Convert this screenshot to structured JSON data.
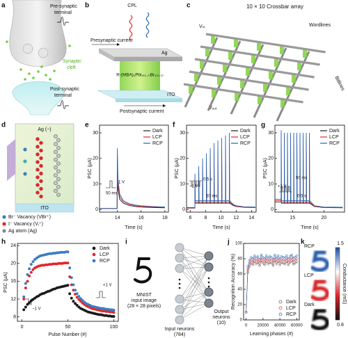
{
  "figure": {
    "a": {
      "label": "a",
      "pre": [
        "Pre-synaptic",
        "terminal"
      ],
      "cleft": [
        "Synaptic",
        "cleft"
      ],
      "post": [
        "Post-synaptic",
        "terminal"
      ]
    },
    "b": {
      "label": "b",
      "cpl": "CPL",
      "presynaptic_current": "Presynaptic current",
      "top_electrode": "Ag",
      "layer": "R-(MBA)₂PbI₄₍₀.₇₎Br₄₍₀.₃₎",
      "bottom_electrode": "ITO",
      "postsynaptic_current": "Postsynaptic current"
    },
    "c": {
      "label": "c",
      "title": "10 × 10 Crossbar array",
      "vin": "Vᵢₙ",
      "wordlines": "Wordlines",
      "bitlines": "Bitlines",
      "vout": "Vₒᵤₜ"
    },
    "d": {
      "label": "d",
      "top": "Ag (−)",
      "bottom": "ITO",
      "legend": [
        "Br⁻ Vacancy (VBr⁺)",
        "I⁻ Vacancy (Vᵢ⁺)",
        "Ag atom (Ag)"
      ]
    },
    "i": {
      "label": "i",
      "input": [
        "MNIST",
        "input image",
        "(28 × 28 pixels)"
      ],
      "input_neurons": [
        "Input neurons",
        "(784)"
      ],
      "output_neurons": [
        "Output",
        "neurons",
        "(10)"
      ]
    }
  },
  "chart_data": [
    {
      "type": "line",
      "label": "e",
      "xlabel": "Time (s)",
      "ylabel": "PSC (μA)",
      "x": [
        12.5,
        13.98,
        14.0,
        14.05,
        14.2,
        14.5,
        15,
        15.5,
        16,
        17,
        18
      ],
      "series": [
        {
          "name": "Dark",
          "color": "#1a1a1a",
          "values": [
            0.4,
            0.4,
            16,
            8,
            4,
            2.5,
            1.6,
            1.2,
            1.0,
            0.8,
            0.7
          ]
        },
        {
          "name": "LCP",
          "color": "#e3262b",
          "values": [
            0.4,
            0.4,
            20,
            10,
            5,
            3,
            2,
            1.5,
            1.2,
            1.0,
            0.9
          ]
        },
        {
          "name": "RCP",
          "color": "#2364b4",
          "values": [
            0.4,
            0.4,
            24,
            12,
            6,
            3.5,
            2.3,
            1.8,
            1.5,
            1.2,
            1.0
          ]
        }
      ],
      "xlim": [
        12.5,
        18.3
      ],
      "xticks": [
        14,
        16,
        18
      ],
      "ylim": [
        -1,
        33
      ],
      "yticks": [
        0,
        10,
        20,
        30
      ],
      "legend": "upper right",
      "annotations": [
        "1 V",
        "50 ms"
      ]
    },
    {
      "type": "line",
      "label": "f",
      "xlabel": "Time (s)",
      "ylabel": "PSC (μA)",
      "x": [
        5.5,
        6.59,
        6.6,
        6.63,
        7.09,
        7.1,
        7.13,
        7.59,
        7.6,
        7.63,
        8.09,
        8.1,
        8.13,
        8.59,
        8.6,
        8.63,
        9.09,
        9.1,
        9.13,
        9.59,
        9.6,
        9.63,
        10.09,
        10.1,
        10.13,
        10.59,
        10.6,
        10.63,
        11.09,
        11.1,
        11.13,
        11.6,
        12,
        13,
        14.5
      ],
      "series": [
        {
          "name": "Dark",
          "color": "#1a1a1a",
          "values": [
            0.6,
            0.6,
            9,
            2.5,
            2.5,
            11,
            2.5,
            2.5,
            13,
            2.5,
            2.5,
            14,
            2.5,
            2.5,
            16,
            2.5,
            2.5,
            17,
            2.5,
            2.5,
            18,
            2.5,
            2.5,
            19,
            2.5,
            2.5,
            20,
            2.5,
            2.5,
            21,
            2.5,
            1.6,
            1.2,
            0.9,
            0.8
          ]
        },
        {
          "name": "LCP",
          "color": "#e3262b",
          "values": [
            0.7,
            0.7,
            12,
            3,
            3,
            15,
            3,
            3,
            17,
            3,
            3,
            19,
            3,
            3,
            21,
            3,
            3,
            22,
            3,
            3,
            23,
            3,
            3,
            24,
            3,
            3,
            25,
            3,
            3,
            26,
            3,
            1.8,
            1.3,
            1.0,
            0.9
          ]
        },
        {
          "name": "RCP",
          "color": "#2364b4",
          "values": [
            0.8,
            0.8,
            14,
            3.5,
            3.5,
            17,
            3.5,
            3.5,
            20,
            3.5,
            3.5,
            22,
            3.5,
            3.5,
            24,
            3.5,
            3.5,
            26,
            3.5,
            3.5,
            27,
            3.5,
            3.5,
            28,
            3.5,
            3.5,
            29,
            3.5,
            3.5,
            30,
            3.5,
            2,
            1.5,
            1.1,
            1.0
          ]
        }
      ],
      "xlim": [
        5.5,
        14.6
      ],
      "xticks": [
        6,
        8,
        10,
        12,
        14
      ],
      "ylim": [
        -1,
        33
      ],
      "yticks": [
        0,
        10,
        20,
        30
      ],
      "legend": "upper right",
      "annotations": [
        "−1 V",
        "0.5 s",
        "50 ms"
      ]
    },
    {
      "type": "line",
      "label": "g",
      "xlabel": "Time (s)",
      "ylabel": "PSC (μA)",
      "x": [
        12.2,
        13.19,
        13.2,
        13.23,
        13.69,
        13.7,
        13.73,
        14.19,
        14.2,
        14.23,
        14.69,
        14.7,
        14.73,
        15.19,
        15.2,
        15.23,
        15.69,
        15.7,
        15.73,
        16.19,
        16.2,
        16.23,
        16.69,
        16.7,
        16.73,
        17.19,
        17.2,
        17.23,
        17.69,
        17.7,
        17.73,
        18.5,
        20,
        23
      ],
      "series": [
        {
          "name": "Dark",
          "color": "#1a1a1a",
          "values": [
            3,
            3,
            29,
            2.5,
            2.5,
            28,
            2.5,
            2.5,
            28,
            2.5,
            2.5,
            28,
            2.5,
            2.5,
            28,
            2.5,
            2.5,
            28,
            2.5,
            2.5,
            28,
            2.5,
            2.5,
            28,
            2.5,
            2.5,
            28,
            2.5,
            2.5,
            28,
            2.5,
            1.2,
            0.8,
            0.7
          ]
        },
        {
          "name": "LCP",
          "color": "#e3262b",
          "values": [
            3.5,
            3.5,
            30,
            3,
            3,
            29,
            3,
            3,
            29,
            3,
            3,
            29,
            3,
            3,
            29,
            3,
            3,
            29,
            3,
            3,
            29,
            3,
            3,
            29,
            3,
            3,
            29,
            3,
            3,
            29,
            3,
            1.3,
            0.9,
            0.8
          ]
        },
        {
          "name": "RCP",
          "color": "#2364b4",
          "values": [
            4,
            4,
            31,
            3.5,
            3.5,
            30,
            3.5,
            3.5,
            30,
            3.5,
            3.5,
            30,
            3.5,
            3.5,
            30,
            3.5,
            3.5,
            30,
            3.5,
            3.5,
            30,
            3.5,
            3.5,
            30,
            3.5,
            3.5,
            30,
            3.5,
            3.5,
            30,
            3.5,
            1.5,
            1.0,
            0.9
          ]
        }
      ],
      "xlim": [
        12.2,
        23.3
      ],
      "xticks": [
        15,
        20
      ],
      "ylim": [
        -1,
        33
      ],
      "yticks": [
        0,
        10,
        20,
        30
      ],
      "legend": "upper right",
      "annotations": [
        "+1 V",
        "50 ms",
        "0.5 s"
      ]
    },
    {
      "type": "scatter",
      "marker": "filled",
      "label": "h",
      "xlabel": "Pulse Number (#)",
      "ylabel": "PSC (μA)",
      "x": [
        2,
        4,
        6,
        8,
        10,
        12,
        14,
        16,
        18,
        20,
        22,
        24,
        26,
        28,
        30,
        32,
        34,
        36,
        38,
        40,
        42,
        44,
        46,
        48,
        50,
        52,
        54,
        56,
        58,
        60,
        62,
        64,
        66,
        68,
        70,
        72,
        74,
        76,
        78,
        80,
        82,
        84,
        86,
        88,
        90,
        92,
        94,
        96,
        98,
        100
      ],
      "series": [
        {
          "name": "Dark",
          "color": "#1a1a1a",
          "values": [
            9.6,
            10.2,
            10.8,
            11.2,
            11.6,
            11.9,
            12.2,
            12.5,
            12.7,
            13.0,
            13.2,
            13.3,
            13.5,
            13.7,
            13.8,
            14.0,
            14.2,
            14.3,
            14.5,
            14.6,
            14.7,
            14.8,
            14.9,
            15.0,
            15.1,
            13.2,
            12.2,
            11.5,
            11.0,
            10.6,
            10.2,
            9.9,
            9.7,
            9.5,
            9.3,
            9.1,
            9.0,
            8.9,
            8.8,
            8.7,
            8.6,
            8.5,
            8.5,
            8.4,
            8.3,
            8.3,
            8.2,
            8.2,
            8.1,
            8.1
          ]
        },
        {
          "name": "LCP",
          "color": "#e3262b",
          "values": [
            12.0,
            14.5,
            16.0,
            17.2,
            18.0,
            18.6,
            19.0,
            19.2,
            19.4,
            19.5,
            19.6,
            19.6,
            19.7,
            19.7,
            19.8,
            19.8,
            19.9,
            19.9,
            19.9,
            20.0,
            20.0,
            20.0,
            20.1,
            20.1,
            20.1,
            17.0,
            15.2,
            14.0,
            13.1,
            12.4,
            11.9,
            11.5,
            11.1,
            10.8,
            10.5,
            10.3,
            10.1,
            9.9,
            9.8,
            9.7,
            9.6,
            9.5,
            9.4,
            9.3,
            9.3,
            9.2,
            9.2,
            9.1,
            9.1,
            9.0
          ]
        },
        {
          "name": "RCP",
          "color": "#3a7cc1",
          "values": [
            12.5,
            15.5,
            17.5,
            18.8,
            19.8,
            20.4,
            20.9,
            21.2,
            21.5,
            21.7,
            21.8,
            21.9,
            22.0,
            22.1,
            22.2,
            22.2,
            22.3,
            22.3,
            22.4,
            22.4,
            22.5,
            22.5,
            22.5,
            22.6,
            22.6,
            19.0,
            16.8,
            15.2,
            14.0,
            13.2,
            12.6,
            12.1,
            11.7,
            11.3,
            11.0,
            10.8,
            10.6,
            10.4,
            10.3,
            10.2,
            10.1,
            10.0,
            9.9,
            9.9,
            9.8,
            9.7,
            9.7,
            9.6,
            9.6,
            9.5
          ]
        }
      ],
      "xlim": [
        -5,
        105
      ],
      "xticks": [
        0,
        50,
        100
      ],
      "ylim": [
        7,
        24.5
      ],
      "yticks": [
        8,
        12,
        16,
        20,
        24
      ],
      "legend": "upper right",
      "annotations": [
        "+1 V",
        "−1 V"
      ]
    },
    {
      "type": "line",
      "marker": "open",
      "label": "j",
      "xlabel": "Learning phases (#)",
      "ylabel": "Recognition Accuracy (%)",
      "x": [
        0,
        2000,
        4000,
        6000,
        8000,
        10000,
        12000,
        14000,
        16000,
        18000,
        20000,
        22000,
        24000,
        26000,
        28000,
        30000,
        32000,
        34000,
        36000,
        38000,
        40000,
        42000,
        44000,
        46000,
        48000,
        50000,
        52000,
        54000,
        56000,
        58000,
        60000
      ],
      "series": [
        {
          "name": "Dark",
          "color": "#555555",
          "values": [
            10,
            62,
            70,
            74,
            72,
            76,
            73,
            75,
            71,
            77,
            74,
            72,
            76,
            73,
            75,
            74,
            71,
            77,
            73,
            76,
            72,
            75,
            74,
            73,
            76,
            72,
            75,
            77,
            73,
            74,
            76
          ]
        },
        {
          "name": "LCP",
          "color": "#e3262b",
          "values": [
            10,
            66,
            74,
            78,
            76,
            80,
            77,
            79,
            75,
            81,
            78,
            76,
            80,
            77,
            79,
            78,
            75,
            81,
            77,
            80,
            76,
            79,
            78,
            77,
            80,
            76,
            79,
            81,
            77,
            78,
            80
          ]
        },
        {
          "name": "RCP",
          "color": "#2364b4",
          "values": [
            10,
            70,
            78,
            82,
            80,
            84,
            81,
            83,
            79,
            85,
            82,
            80,
            84,
            81,
            83,
            82,
            79,
            85,
            81,
            84,
            80,
            83,
            82,
            81,
            84,
            80,
            83,
            85,
            81,
            82,
            84
          ]
        }
      ],
      "xlim": [
        -3000,
        63000
      ],
      "xticks": [
        0,
        20000,
        40000,
        60000
      ],
      "ylim": [
        0,
        100
      ],
      "yticks": [
        0,
        20,
        40,
        60,
        80,
        100
      ],
      "legend": "lower right"
    },
    {
      "type": "heatmap",
      "label": "k",
      "categories": [
        "RCP",
        "LCP",
        "Dark"
      ],
      "colorbar_label": "Conductance (mS)",
      "clim": [
        0.8,
        1.5
      ],
      "cticks": [
        0.8,
        1.5
      ],
      "colormap": [
        "#111111",
        "#d8262b",
        "#ffffff",
        "#1f4fa8"
      ]
    }
  ]
}
